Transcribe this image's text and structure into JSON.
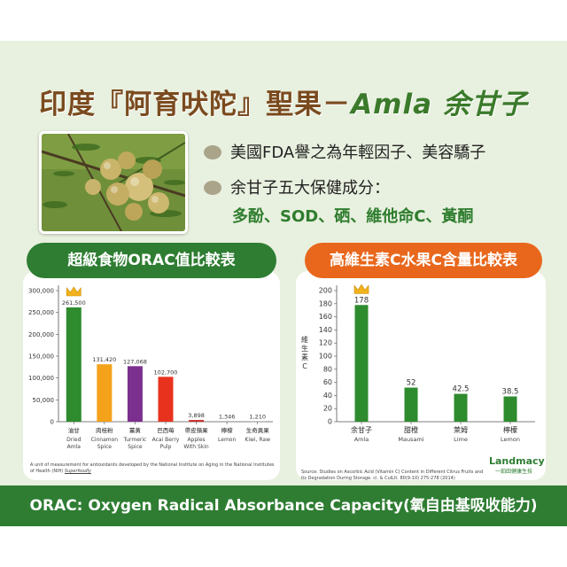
{
  "header": {
    "title_main": "印度『阿育吠陀』聖果－",
    "title_accent": "Amla 余甘子"
  },
  "bullets": {
    "line1": "美國FDA譽之為年輕因子、美容驕子",
    "line2": "余甘子五大保健成分：",
    "line3": "多酚、SOD、硒、維他命C、黃酮"
  },
  "colors": {
    "green": "#2e7d32",
    "orange": "#e8671c",
    "brown_title": "#7a4a1e",
    "panel_bg": "#e8f0df"
  },
  "chart_data": [
    {
      "type": "bar",
      "title": "超級食物ORAC值比較表",
      "ylim": [
        0,
        300000
      ],
      "yticks": [
        "0",
        "50,000",
        "100,000",
        "150,000",
        "200,000",
        "250,000",
        "300,000"
      ],
      "ytick_values": [
        0,
        50000,
        100000,
        150000,
        200000,
        250000,
        300000
      ],
      "categories": [
        {
          "zh": "油甘",
          "en1": "Dried",
          "en2": "Amla"
        },
        {
          "zh": "肉桂粉",
          "en1": "Cinnamon",
          "en2": "Spice"
        },
        {
          "zh": "薑黃",
          "en1": "Turmeric",
          "en2": "Spice"
        },
        {
          "zh": "巴西莓",
          "en1": "Acai Berry",
          "en2": "Pulp"
        },
        {
          "zh": "帶皮蘋果",
          "en1": "Apples",
          "en2": "With Skin"
        },
        {
          "zh": "檸檬",
          "en1": "Lemon",
          "en2": ""
        },
        {
          "zh": "生奇異果",
          "en1": "Kiwi, Raw",
          "en2": ""
        }
      ],
      "values": [
        261500,
        131420,
        127068,
        102700,
        3898,
        1346,
        1210
      ],
      "value_labels": [
        "261,500",
        "131,420",
        "127,068",
        "102,700",
        "3,898",
        "1,346",
        "1,210"
      ],
      "bar_colors": [
        "#2e8b2e",
        "#f5a21b",
        "#7b2f8e",
        "#e8321e",
        "#c62828",
        "#9e9e9e",
        "#9e9e9e"
      ],
      "grid": false,
      "footnote": "A unit of measurement for antioxidants developed by the National Institute on Aging in the National Institutes of Health (NIH)",
      "footnote_link": "Superfoodly"
    },
    {
      "type": "bar",
      "title": "高維生素C水果C含量比較表",
      "ylabel": "維生素C",
      "ylim": [
        0,
        200
      ],
      "yticks": [
        "0",
        "20",
        "40",
        "60",
        "80",
        "100",
        "120",
        "140",
        "160",
        "180",
        "200"
      ],
      "ytick_values": [
        0,
        20,
        40,
        60,
        80,
        100,
        120,
        140,
        160,
        180,
        200
      ],
      "categories": [
        {
          "zh": "余甘子",
          "en1": "Amla",
          "en2": ""
        },
        {
          "zh": "甜橙",
          "en1": "Mausami",
          "en2": ""
        },
        {
          "zh": "萊姆",
          "en1": "Lime",
          "en2": ""
        },
        {
          "zh": "檸檬",
          "en1": "Lemon",
          "en2": ""
        }
      ],
      "values": [
        178,
        52,
        42.5,
        38.5
      ],
      "value_labels": [
        "178",
        "52",
        "42.5",
        "38.5"
      ],
      "bar_colors": [
        "#2e8b2e",
        "#2e8b2e",
        "#2e8b2e",
        "#2e8b2e"
      ],
      "grid": false,
      "footnote": "Source: Studies on Ascorbic Acid (Vitamin C) Content in Different Citrus Fruits and its Degradation During Storage. ci. & CulLlt. 80(9-10) 275-278 (2014)"
    }
  ],
  "logo": {
    "name": "Landmacy",
    "sub": "一鉑田健康生技"
  },
  "footer": {
    "text": "ORAC: Oxygen Radical Absorbance Capacity(氧自由基吸收能力)"
  }
}
